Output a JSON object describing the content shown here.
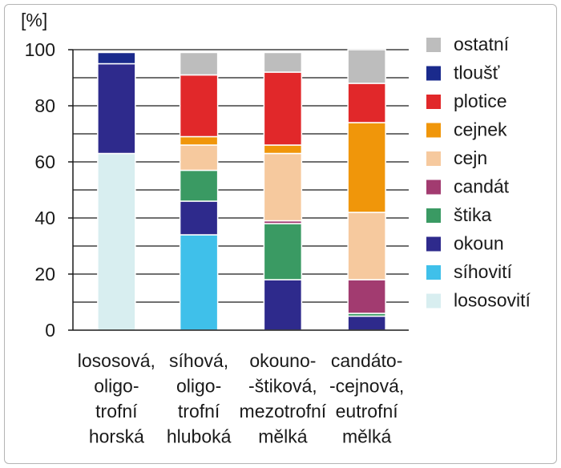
{
  "chart_data": {
    "type": "bar",
    "stacked": true,
    "title": "",
    "xlabel": "",
    "ylabel": "[%]",
    "ylim": [
      0,
      100
    ],
    "yticks": [
      0,
      20,
      40,
      60,
      80,
      100
    ],
    "grid": true,
    "legend_position": "right",
    "categories": [
      [
        "lososová,",
        "oligo-",
        "trofní",
        "horská"
      ],
      [
        "síhová,",
        "oligo-",
        "trofní",
        "hluboká"
      ],
      [
        "okouno-",
        "-štiková,",
        "mezotrofní",
        "mělká"
      ],
      [
        "candáto-",
        "-cejnová,",
        "eutrofní",
        "mělká"
      ]
    ],
    "series": [
      {
        "name": "lososovití",
        "color": "#d8eef0",
        "values": [
          63,
          0,
          0,
          0
        ]
      },
      {
        "name": "síhovití",
        "color": "#3fc0ea",
        "values": [
          0,
          34,
          0,
          0
        ]
      },
      {
        "name": "okoun",
        "color": "#2e2a8c",
        "values": [
          32,
          12,
          18,
          5
        ]
      },
      {
        "name": "štika",
        "color": "#3a9a63",
        "values": [
          0,
          11,
          20,
          1
        ]
      },
      {
        "name": "candát",
        "color": "#a23b70",
        "values": [
          0,
          0,
          1,
          12
        ]
      },
      {
        "name": "cejn",
        "color": "#f6c99e",
        "values": [
          0,
          9,
          24,
          24
        ]
      },
      {
        "name": "cejnek",
        "color": "#f0960a",
        "values": [
          0,
          3,
          3,
          32
        ]
      },
      {
        "name": "plotice",
        "color": "#e1282a",
        "values": [
          0,
          22,
          26,
          14
        ]
      },
      {
        "name": "tloušť",
        "color": "#1a2a8c",
        "values": [
          4,
          0,
          0,
          0
        ]
      },
      {
        "name": "ostatní",
        "color": "#bdbdbd",
        "values": [
          0,
          8,
          7,
          12
        ]
      }
    ]
  }
}
